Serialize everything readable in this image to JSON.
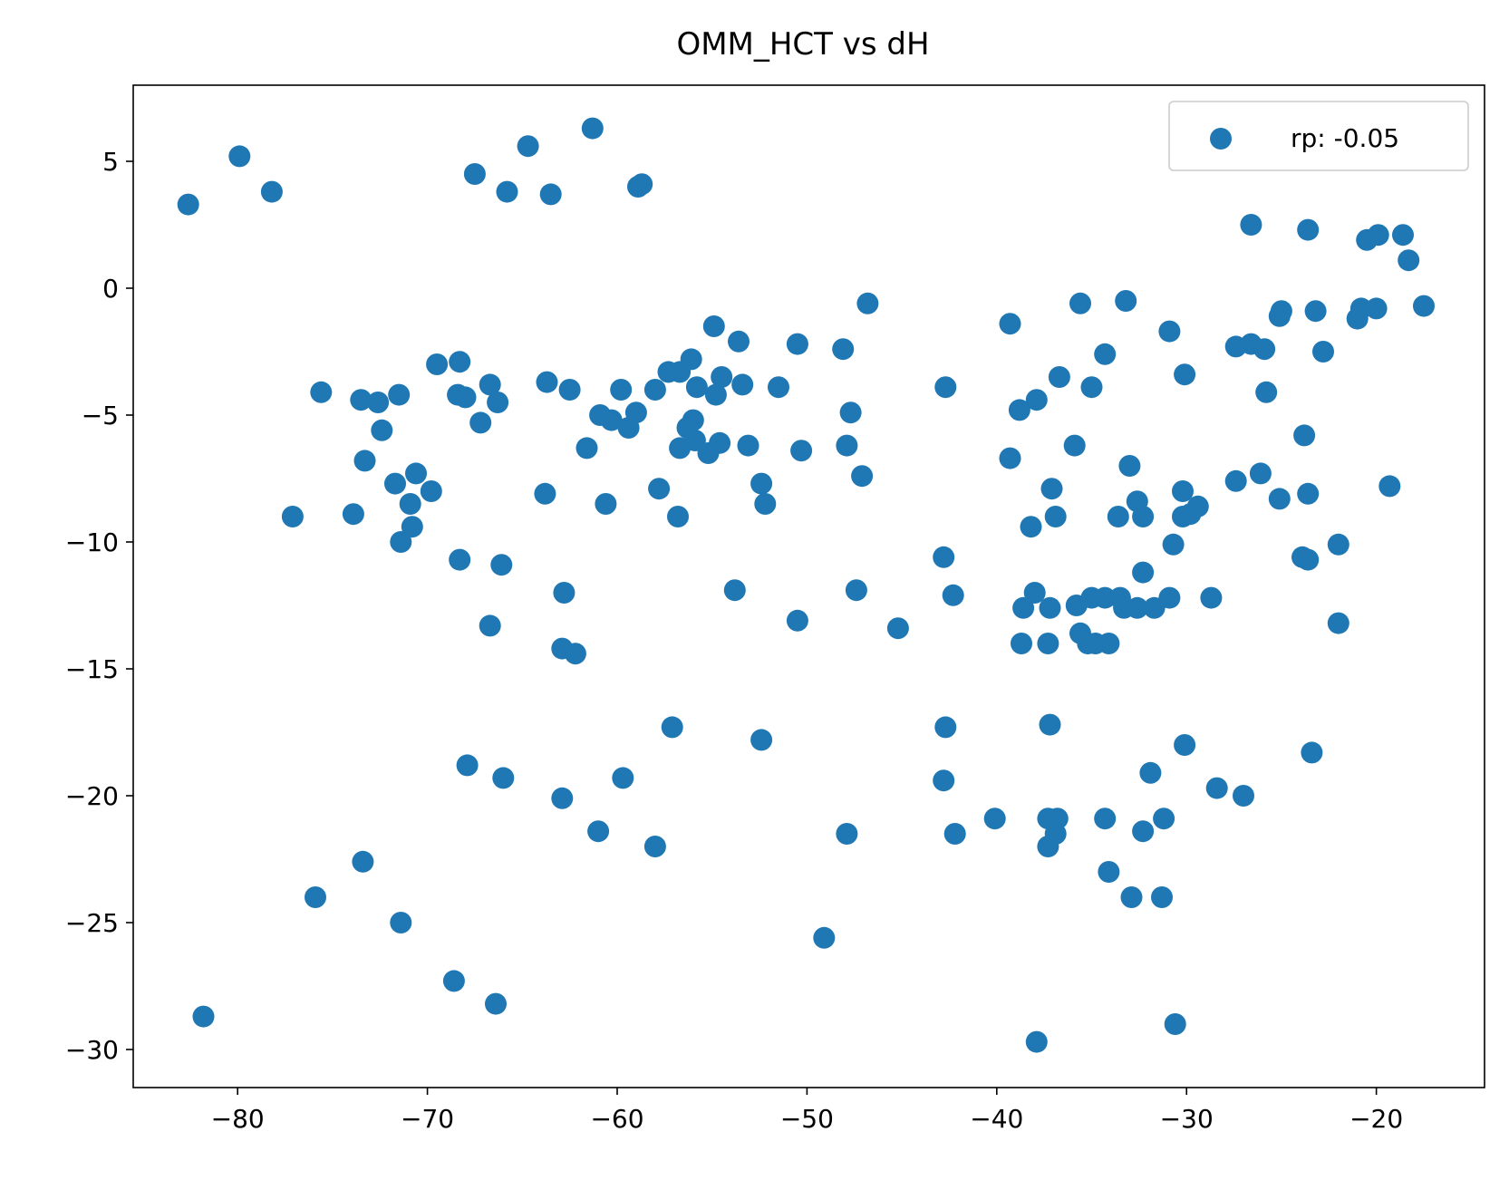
{
  "chart_data": {
    "type": "scatter",
    "title": "OMM_HCT vs dH",
    "xlabel": "",
    "ylabel": "",
    "xlim": [
      -85.5,
      -14.3
    ],
    "ylim": [
      -31.5,
      8.0
    ],
    "xticks": [
      -80,
      -70,
      -60,
      -50,
      -40,
      -30,
      -20
    ],
    "yticks": [
      5,
      0,
      -5,
      -10,
      -15,
      -20,
      -25,
      -30
    ],
    "xtick_labels": [
      "−80",
      "−70",
      "−60",
      "−50",
      "−40",
      "−30",
      "−20"
    ],
    "ytick_labels": [
      "5",
      "0",
      "−5",
      "−10",
      "−15",
      "−20",
      "−25",
      "−30"
    ],
    "grid": false,
    "legend": "top-right",
    "series": [
      {
        "name": "rp: -0.05",
        "color": "#1f77b4",
        "points": [
          [
            -82.6,
            3.3
          ],
          [
            -79.9,
            5.2
          ],
          [
            -78.2,
            3.8
          ],
          [
            -81.8,
            -28.7
          ],
          [
            -77.1,
            -9.0
          ],
          [
            -75.6,
            -4.1
          ],
          [
            -75.9,
            -24.0
          ],
          [
            -73.9,
            -8.9
          ],
          [
            -73.5,
            -4.4
          ],
          [
            -72.6,
            -4.5
          ],
          [
            -73.3,
            -6.8
          ],
          [
            -72.4,
            -5.6
          ],
          [
            -73.4,
            -22.6
          ],
          [
            -71.5,
            -4.2
          ],
          [
            -71.7,
            -7.7
          ],
          [
            -70.6,
            -7.3
          ],
          [
            -70.9,
            -8.5
          ],
          [
            -70.8,
            -9.4
          ],
          [
            -71.4,
            -10.0
          ],
          [
            -71.4,
            -25.0
          ],
          [
            -69.8,
            -8.0
          ],
          [
            -69.5,
            -3.0
          ],
          [
            -68.3,
            -2.9
          ],
          [
            -68.4,
            -4.2
          ],
          [
            -68.0,
            -4.3
          ],
          [
            -67.5,
            4.5
          ],
          [
            -67.2,
            -5.3
          ],
          [
            -66.7,
            -3.8
          ],
          [
            -66.3,
            -4.5
          ],
          [
            -68.3,
            -10.7
          ],
          [
            -66.1,
            -10.9
          ],
          [
            -66.7,
            -13.3
          ],
          [
            -67.9,
            -18.8
          ],
          [
            -66.0,
            -19.3
          ],
          [
            -68.6,
            -27.3
          ],
          [
            -66.4,
            -28.2
          ],
          [
            -65.8,
            3.8
          ],
          [
            -64.7,
            5.6
          ],
          [
            -63.5,
            3.7
          ],
          [
            -63.7,
            -3.7
          ],
          [
            -63.8,
            -8.1
          ],
          [
            -62.5,
            -4.0
          ],
          [
            -62.8,
            -12.0
          ],
          [
            -62.9,
            -14.2
          ],
          [
            -62.2,
            -14.4
          ],
          [
            -62.9,
            -20.1
          ],
          [
            -61.3,
            6.3
          ],
          [
            -60.9,
            -5.0
          ],
          [
            -60.3,
            -5.2
          ],
          [
            -61.6,
            -6.3
          ],
          [
            -60.6,
            -8.5
          ],
          [
            -61.0,
            -21.4
          ],
          [
            -59.8,
            -4.0
          ],
          [
            -59.4,
            -5.5
          ],
          [
            -59.0,
            -4.9
          ],
          [
            -58.9,
            4.0
          ],
          [
            -58.7,
            4.1
          ],
          [
            -59.7,
            -19.3
          ],
          [
            -58.0,
            -22.0
          ],
          [
            -57.3,
            -3.3
          ],
          [
            -58.0,
            -4.0
          ],
          [
            -57.8,
            -7.9
          ],
          [
            -56.7,
            -3.3
          ],
          [
            -56.1,
            -2.8
          ],
          [
            -55.8,
            -3.9
          ],
          [
            -56.7,
            -6.3
          ],
          [
            -56.0,
            -5.2
          ],
          [
            -56.3,
            -5.5
          ],
          [
            -55.9,
            -6.0
          ],
          [
            -55.2,
            -6.5
          ],
          [
            -56.8,
            -9.0
          ],
          [
            -57.1,
            -17.3
          ],
          [
            -54.9,
            -1.5
          ],
          [
            -54.5,
            -3.5
          ],
          [
            -54.8,
            -4.2
          ],
          [
            -54.6,
            -6.1
          ],
          [
            -53.6,
            -2.1
          ],
          [
            -53.4,
            -3.8
          ],
          [
            -53.1,
            -6.2
          ],
          [
            -53.8,
            -11.9
          ],
          [
            -52.4,
            -7.7
          ],
          [
            -52.2,
            -8.5
          ],
          [
            -52.4,
            -17.8
          ],
          [
            -51.5,
            -3.9
          ],
          [
            -50.5,
            -2.2
          ],
          [
            -50.3,
            -6.4
          ],
          [
            -50.5,
            -13.1
          ],
          [
            -49.1,
            -25.6
          ],
          [
            -48.1,
            -2.4
          ],
          [
            -47.9,
            -6.2
          ],
          [
            -47.7,
            -4.9
          ],
          [
            -47.1,
            -7.4
          ],
          [
            -47.4,
            -11.9
          ],
          [
            -47.9,
            -21.5
          ],
          [
            -46.8,
            -0.6
          ],
          [
            -45.2,
            -13.4
          ],
          [
            -42.7,
            -3.9
          ],
          [
            -42.8,
            -10.6
          ],
          [
            -42.3,
            -12.1
          ],
          [
            -42.7,
            -17.3
          ],
          [
            -42.8,
            -19.4
          ],
          [
            -42.2,
            -21.5
          ],
          [
            -40.1,
            -20.9
          ],
          [
            -39.3,
            -1.4
          ],
          [
            -39.3,
            -6.7
          ],
          [
            -38.8,
            -4.8
          ],
          [
            -37.9,
            -4.4
          ],
          [
            -38.2,
            -9.4
          ],
          [
            -38.0,
            -12.0
          ],
          [
            -38.6,
            -12.6
          ],
          [
            -37.2,
            -12.6
          ],
          [
            -38.7,
            -14.0
          ],
          [
            -37.3,
            -14.0
          ],
          [
            -37.2,
            -17.2
          ],
          [
            -37.3,
            -20.9
          ],
          [
            -36.8,
            -20.9
          ],
          [
            -37.3,
            -22.0
          ],
          [
            -36.9,
            -21.5
          ],
          [
            -37.9,
            -29.7
          ],
          [
            -36.7,
            -3.5
          ],
          [
            -37.1,
            -7.9
          ],
          [
            -36.9,
            -9.0
          ],
          [
            -35.9,
            -6.2
          ],
          [
            -35.6,
            -0.6
          ],
          [
            -35.0,
            -3.9
          ],
          [
            -34.3,
            -2.6
          ],
          [
            -35.8,
            -12.5
          ],
          [
            -35.0,
            -12.2
          ],
          [
            -34.3,
            -12.2
          ],
          [
            -35.6,
            -13.6
          ],
          [
            -35.2,
            -14.0
          ],
          [
            -34.8,
            -14.0
          ],
          [
            -34.1,
            -14.0
          ],
          [
            -34.3,
            -20.9
          ],
          [
            -34.1,
            -23.0
          ],
          [
            -33.6,
            -9.0
          ],
          [
            -33.5,
            -12.2
          ],
          [
            -33.3,
            -12.6
          ],
          [
            -33.2,
            -0.5
          ],
          [
            -33.0,
            -7.0
          ],
          [
            -32.6,
            -8.4
          ],
          [
            -32.3,
            -9.0
          ],
          [
            -32.3,
            -11.2
          ],
          [
            -32.6,
            -12.6
          ],
          [
            -31.7,
            -12.6
          ],
          [
            -30.9,
            -12.2
          ],
          [
            -32.3,
            -21.4
          ],
          [
            -31.9,
            -19.1
          ],
          [
            -31.2,
            -20.9
          ],
          [
            -32.9,
            -24.0
          ],
          [
            -31.3,
            -24.0
          ],
          [
            -30.7,
            -10.1
          ],
          [
            -30.9,
            -1.7
          ],
          [
            -30.1,
            -3.4
          ],
          [
            -30.2,
            -8.0
          ],
          [
            -30.2,
            -9.0
          ],
          [
            -29.8,
            -8.9
          ],
          [
            -29.4,
            -8.6
          ],
          [
            -30.1,
            -18.0
          ],
          [
            -30.6,
            -29.0
          ],
          [
            -28.7,
            -12.2
          ],
          [
            -28.4,
            -19.7
          ],
          [
            -27.4,
            -2.3
          ],
          [
            -26.6,
            -2.2
          ],
          [
            -25.9,
            -2.4
          ],
          [
            -25.8,
            -4.1
          ],
          [
            -26.1,
            -7.3
          ],
          [
            -27.4,
            -7.6
          ],
          [
            -27.0,
            -20.0
          ],
          [
            -26.6,
            2.5
          ],
          [
            -25.1,
            -1.1
          ],
          [
            -25.0,
            -0.9
          ],
          [
            -25.1,
            -8.3
          ],
          [
            -23.6,
            2.3
          ],
          [
            -23.2,
            -0.9
          ],
          [
            -22.8,
            -2.5
          ],
          [
            -23.8,
            -5.8
          ],
          [
            -23.6,
            -8.1
          ],
          [
            -23.9,
            -10.6
          ],
          [
            -23.6,
            -10.7
          ],
          [
            -22.0,
            -10.1
          ],
          [
            -22.0,
            -13.2
          ],
          [
            -23.4,
            -18.3
          ],
          [
            -20.5,
            1.9
          ],
          [
            -19.9,
            2.1
          ],
          [
            -18.6,
            2.1
          ],
          [
            -18.3,
            1.1
          ],
          [
            -21.0,
            -1.2
          ],
          [
            -20.8,
            -0.8
          ],
          [
            -20.0,
            -0.8
          ],
          [
            -17.5,
            -0.7
          ],
          [
            -19.3,
            -7.8
          ]
        ]
      }
    ]
  }
}
